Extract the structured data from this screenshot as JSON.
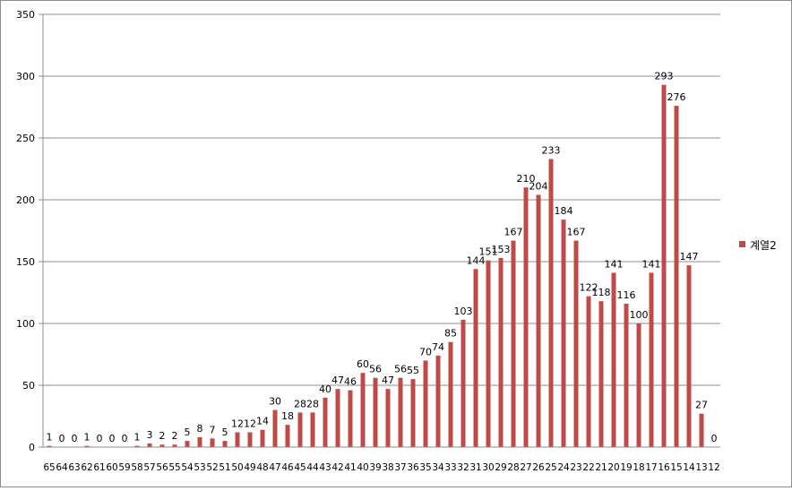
{
  "chart_data": {
    "type": "bar",
    "categories": [
      "65",
      "64",
      "63",
      "62",
      "61",
      "60",
      "59",
      "58",
      "57",
      "56",
      "55",
      "54",
      "53",
      "52",
      "51",
      "50",
      "49",
      "48",
      "47",
      "46",
      "45",
      "44",
      "43",
      "42",
      "41",
      "40",
      "39",
      "38",
      "37",
      "36",
      "35",
      "34",
      "33",
      "32",
      "31",
      "30",
      "29",
      "28",
      "27",
      "26",
      "25",
      "24",
      "23",
      "22",
      "21",
      "20",
      "19",
      "18",
      "17",
      "16",
      "15",
      "14",
      "13",
      "12"
    ],
    "series": [
      {
        "name": "계열2",
        "values": [
          1,
          0,
          0,
          1,
          0,
          0,
          0,
          1,
          3,
          2,
          2,
          5,
          8,
          7,
          5,
          12,
          12,
          14,
          30,
          18,
          28,
          28,
          40,
          47,
          46,
          60,
          56,
          47,
          56,
          55,
          70,
          74,
          85,
          103,
          144,
          151,
          153,
          167,
          210,
          204,
          233,
          184,
          167,
          122,
          118,
          141,
          116,
          100,
          141,
          293,
          276,
          147,
          27,
          0
        ]
      }
    ],
    "ylim": [
      0,
      350
    ],
    "yticks": [
      0,
      50,
      100,
      150,
      200,
      250,
      300,
      350
    ],
    "grid": true,
    "legend": "right",
    "colors": {
      "bar": "#be4b48",
      "grid": "#8c8c8c",
      "axis": "#8c8c8c",
      "text": "#000000"
    }
  }
}
